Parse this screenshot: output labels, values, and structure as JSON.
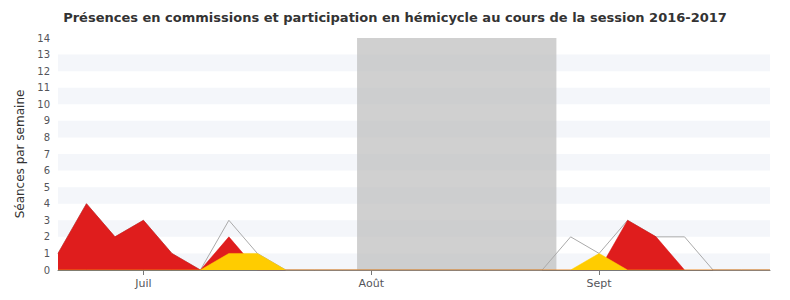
{
  "chart_data": {
    "type": "area",
    "title": "Présences en commissions et participation en hémicycle au cours de la session 2016-2017",
    "ylabel": "Séances par semaine",
    "x": [
      0,
      1,
      2,
      3,
      4,
      5,
      6,
      7,
      8,
      9,
      10,
      11,
      12,
      13,
      14,
      15,
      16,
      17,
      18,
      19,
      20,
      21,
      22,
      23,
      24,
      25
    ],
    "series": [
      {
        "type": "line",
        "color": "#aaaaaa",
        "values": [
          1,
          4,
          2,
          3,
          1,
          0,
          3,
          1,
          0,
          0,
          0,
          0,
          0,
          0,
          0,
          0,
          0,
          0,
          2,
          1,
          3,
          2,
          2,
          0,
          0,
          0
        ]
      },
      {
        "type": "area",
        "color": "#dd1111",
        "values": [
          1,
          4,
          2,
          3,
          1,
          0,
          2,
          0,
          0,
          0,
          0,
          0,
          0,
          0,
          0,
          0,
          0,
          0,
          0,
          0,
          3,
          2,
          0,
          0,
          0,
          0
        ]
      },
      {
        "type": "area",
        "color": "#ffcc00",
        "values": [
          0,
          0,
          0,
          0,
          0,
          0,
          1,
          1,
          0,
          0,
          0,
          0,
          0,
          0,
          0,
          0,
          0,
          0,
          0,
          1,
          0,
          0,
          0,
          0,
          0,
          0
        ]
      }
    ],
    "shaded_spans": [
      {
        "xmin": 10.5,
        "xmax": 17.5,
        "color": "#c0c0c0"
      }
    ],
    "xlim": [
      0,
      25
    ],
    "xticks": [
      {
        "value": 3,
        "label": "Juil"
      },
      {
        "value": 11,
        "label": "Août"
      },
      {
        "value": 19,
        "label": "Sept"
      }
    ],
    "ylim": [
      0,
      14
    ],
    "yticks": [
      0,
      1,
      2,
      3,
      4,
      5,
      6,
      7,
      8,
      9,
      10,
      11,
      12,
      13,
      14
    ],
    "grid": true
  }
}
